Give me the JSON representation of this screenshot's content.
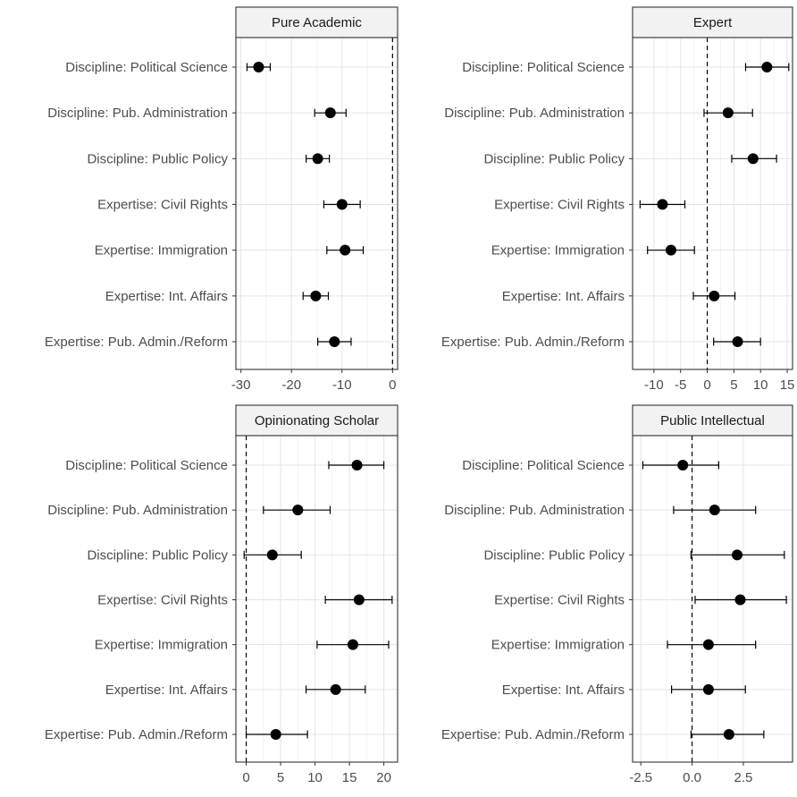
{
  "chart_data": [
    {
      "type": "scatter",
      "title": "Pure Academic",
      "categories": [
        "Discipline: Political Science",
        "Discipline: Pub. Administration",
        "Discipline: Public Policy",
        "Expertise: Civil Rights",
        "Expertise: Immigration",
        "Expertise: Int. Affairs",
        "Expertise: Pub. Admin./Reform"
      ],
      "estimates": [
        -26.5,
        -12.3,
        -14.8,
        -10.0,
        -9.4,
        -15.2,
        -11.5
      ],
      "ci_low": [
        -28.8,
        -15.4,
        -17.1,
        -13.6,
        -13.0,
        -17.7,
        -14.8
      ],
      "ci_high": [
        -24.2,
        -9.2,
        -12.5,
        -6.4,
        -5.8,
        -12.7,
        -8.2
      ],
      "xlim": [
        -31,
        1
      ],
      "xticks": [
        -30,
        -20,
        -10,
        0
      ],
      "xtick_labels": [
        "-30",
        "-20",
        "-10",
        "0"
      ],
      "reference_line": 0
    },
    {
      "type": "scatter",
      "title": "Expert",
      "categories": [
        "Discipline: Political Science",
        "Discipline: Pub. Administration",
        "Discipline: Public Policy",
        "Expertise: Civil Rights",
        "Expertise: Immigration",
        "Expertise: Int. Affairs",
        "Expertise: Pub. Admin./Reform"
      ],
      "estimates": [
        11.2,
        3.9,
        8.6,
        -8.4,
        -6.8,
        1.3,
        5.7
      ],
      "ci_low": [
        7.2,
        -0.6,
        4.6,
        -12.6,
        -11.2,
        -2.6,
        1.2
      ],
      "ci_high": [
        15.3,
        8.5,
        13.0,
        -4.2,
        -2.4,
        5.2,
        10.0
      ],
      "xlim": [
        -14,
        16
      ],
      "xticks": [
        -10,
        -5,
        0,
        5,
        10,
        15
      ],
      "xtick_labels": [
        "-10",
        "-5",
        "0",
        "5",
        "10",
        "15"
      ],
      "reference_line": 0
    },
    {
      "type": "scatter",
      "title": "Opinionating Scholar",
      "categories": [
        "Discipline: Political Science",
        "Discipline: Pub. Administration",
        "Discipline: Public Policy",
        "Expertise: Civil Rights",
        "Expertise: Immigration",
        "Expertise: Int. Affairs",
        "Expertise: Pub. Admin./Reform"
      ],
      "estimates": [
        16.1,
        7.5,
        3.8,
        16.4,
        15.5,
        13.0,
        4.3
      ],
      "ci_low": [
        12.0,
        2.5,
        -0.3,
        11.5,
        10.3,
        8.7,
        0.0
      ],
      "ci_high": [
        20.0,
        12.2,
        8.0,
        21.2,
        20.7,
        17.3,
        8.9
      ],
      "xlim": [
        -1.5,
        22
      ],
      "xticks": [
        0,
        5,
        10,
        15,
        20
      ],
      "xtick_labels": [
        "0",
        "5",
        "10",
        "15",
        "20"
      ],
      "reference_line": 0
    },
    {
      "type": "scatter",
      "title": "Public Intellectual",
      "categories": [
        "Discipline: Political Science",
        "Discipline: Pub. Administration",
        "Discipline: Public Policy",
        "Expertise: Civil Rights",
        "Expertise: Immigration",
        "Expertise: Int. Affairs",
        "Expertise: Pub. Admin./Reform"
      ],
      "estimates": [
        -0.45,
        1.1,
        2.2,
        2.35,
        0.8,
        0.8,
        1.8
      ],
      "ci_low": [
        -2.4,
        -0.9,
        -0.05,
        0.15,
        -1.2,
        -1.0,
        -0.05
      ],
      "ci_high": [
        1.3,
        3.1,
        4.5,
        4.6,
        3.1,
        2.6,
        3.5
      ],
      "xlim": [
        -2.9,
        4.9
      ],
      "xticks": [
        -2.5,
        0,
        2.5
      ],
      "xtick_labels": [
        "-2.5",
        "0.0",
        "2.5"
      ],
      "reference_line": 0
    }
  ]
}
